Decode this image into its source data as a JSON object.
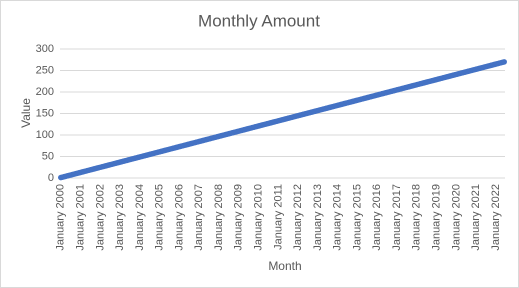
{
  "chart_data": {
    "type": "line",
    "title": "Monthly Amount",
    "x_label": "Month",
    "y_label": "Value",
    "categories": [
      "January 2000",
      null,
      null,
      null,
      null,
      null,
      null,
      null,
      null,
      null,
      null,
      null,
      "January 2001",
      null,
      null,
      null,
      null,
      null,
      null,
      null,
      null,
      null,
      null,
      null,
      "January 2002",
      null,
      null,
      null,
      null,
      null,
      null,
      null,
      null,
      null,
      null,
      null,
      "January 2003",
      null,
      null,
      null,
      null,
      null,
      null,
      null,
      null,
      null,
      null,
      null,
      "January 2004",
      null,
      null,
      null,
      null,
      null,
      null,
      null,
      null,
      null,
      null,
      null,
      "January 2005",
      null,
      null,
      null,
      null,
      null,
      null,
      null,
      null,
      null,
      null,
      null,
      "January 2006",
      null,
      null,
      null,
      null,
      null,
      null,
      null,
      null,
      null,
      null,
      null,
      "January 2007",
      null,
      null,
      null,
      null,
      null,
      null,
      null,
      null,
      null,
      null,
      null,
      "January 2008",
      null,
      null,
      null,
      null,
      null,
      null,
      null,
      null,
      null,
      null,
      null,
      "January 2009",
      null,
      null,
      null,
      null,
      null,
      null,
      null,
      null,
      null,
      null,
      null,
      "January 2010",
      null,
      null,
      null,
      null,
      null,
      null,
      null,
      null,
      null,
      null,
      null,
      "January 2011",
      null,
      null,
      null,
      null,
      null,
      null,
      null,
      null,
      null,
      null,
      null,
      "January 2012",
      null,
      null,
      null,
      null,
      null,
      null,
      null,
      null,
      null,
      null,
      null,
      "January 2013",
      null,
      null,
      null,
      null,
      null,
      null,
      null,
      null,
      null,
      null,
      null,
      "January 2014",
      null,
      null,
      null,
      null,
      null,
      null,
      null,
      null,
      null,
      null,
      null,
      "January 2015",
      null,
      null,
      null,
      null,
      null,
      null,
      null,
      null,
      null,
      null,
      null,
      "January 2016",
      null,
      null,
      null,
      null,
      null,
      null,
      null,
      null,
      null,
      null,
      null,
      "January 2017",
      null,
      null,
      null,
      null,
      null,
      null,
      null,
      null,
      null,
      null,
      null,
      "January 2018",
      null,
      null,
      null,
      null,
      null,
      null,
      null,
      null,
      null,
      null,
      null,
      "January 2019",
      null,
      null,
      null,
      null,
      null,
      null,
      null,
      null,
      null,
      null,
      null,
      "January 2020",
      null,
      null,
      null,
      null,
      null,
      null,
      null,
      null,
      null,
      null,
      null,
      "January 2021",
      null,
      null,
      null,
      null,
      null,
      null,
      null,
      null,
      null,
      null,
      null,
      "January 2022",
      null,
      null,
      null,
      null,
      null
    ],
    "values": [
      1,
      2,
      3,
      4,
      5,
      6,
      7,
      8,
      9,
      10,
      11,
      12,
      13,
      14,
      15,
      16,
      17,
      18,
      19,
      20,
      21,
      22,
      23,
      24,
      25,
      26,
      27,
      28,
      29,
      30,
      31,
      32,
      33,
      34,
      35,
      36,
      37,
      38,
      39,
      40,
      41,
      42,
      43,
      44,
      45,
      46,
      47,
      48,
      49,
      50,
      51,
      52,
      53,
      54,
      55,
      56,
      57,
      58,
      59,
      60,
      61,
      62,
      63,
      64,
      65,
      66,
      67,
      68,
      69,
      70,
      71,
      72,
      73,
      74,
      75,
      76,
      77,
      78,
      79,
      80,
      81,
      82,
      83,
      84,
      85,
      86,
      87,
      88,
      89,
      90,
      91,
      92,
      93,
      94,
      95,
      96,
      97,
      98,
      99,
      100,
      101,
      102,
      103,
      104,
      105,
      106,
      107,
      108,
      109,
      110,
      111,
      112,
      113,
      114,
      115,
      116,
      117,
      118,
      119,
      120,
      121,
      122,
      123,
      124,
      125,
      126,
      127,
      128,
      129,
      130,
      131,
      132,
      133,
      134,
      135,
      136,
      137,
      138,
      139,
      140,
      141,
      142,
      143,
      144,
      145,
      146,
      147,
      148,
      149,
      150,
      151,
      152,
      153,
      154,
      155,
      156,
      157,
      158,
      159,
      160,
      161,
      162,
      163,
      164,
      165,
      166,
      167,
      168,
      169,
      170,
      171,
      172,
      173,
      174,
      175,
      176,
      177,
      178,
      179,
      180,
      181,
      182,
      183,
      184,
      185,
      186,
      187,
      188,
      189,
      190,
      191,
      192,
      193,
      194,
      195,
      196,
      197,
      198,
      199,
      200,
      201,
      202,
      203,
      204,
      205,
      206,
      207,
      208,
      209,
      210,
      211,
      212,
      213,
      214,
      215,
      216,
      217,
      218,
      219,
      220,
      221,
      222,
      223,
      224,
      225,
      226,
      227,
      228,
      229,
      230,
      231,
      232,
      233,
      234,
      235,
      236,
      237,
      238,
      239,
      240,
      241,
      242,
      243,
      244,
      245,
      246,
      247,
      248,
      249,
      250,
      251,
      252,
      253,
      254,
      255,
      256,
      257,
      258,
      259,
      260,
      261,
      262,
      263,
      264,
      265,
      266,
      267,
      268,
      269,
      270
    ],
    "color": "#4472c4",
    "ylim": [
      0,
      300
    ],
    "yticks": [
      0,
      50,
      100,
      150,
      200,
      250,
      300
    ],
    "grid": true
  }
}
